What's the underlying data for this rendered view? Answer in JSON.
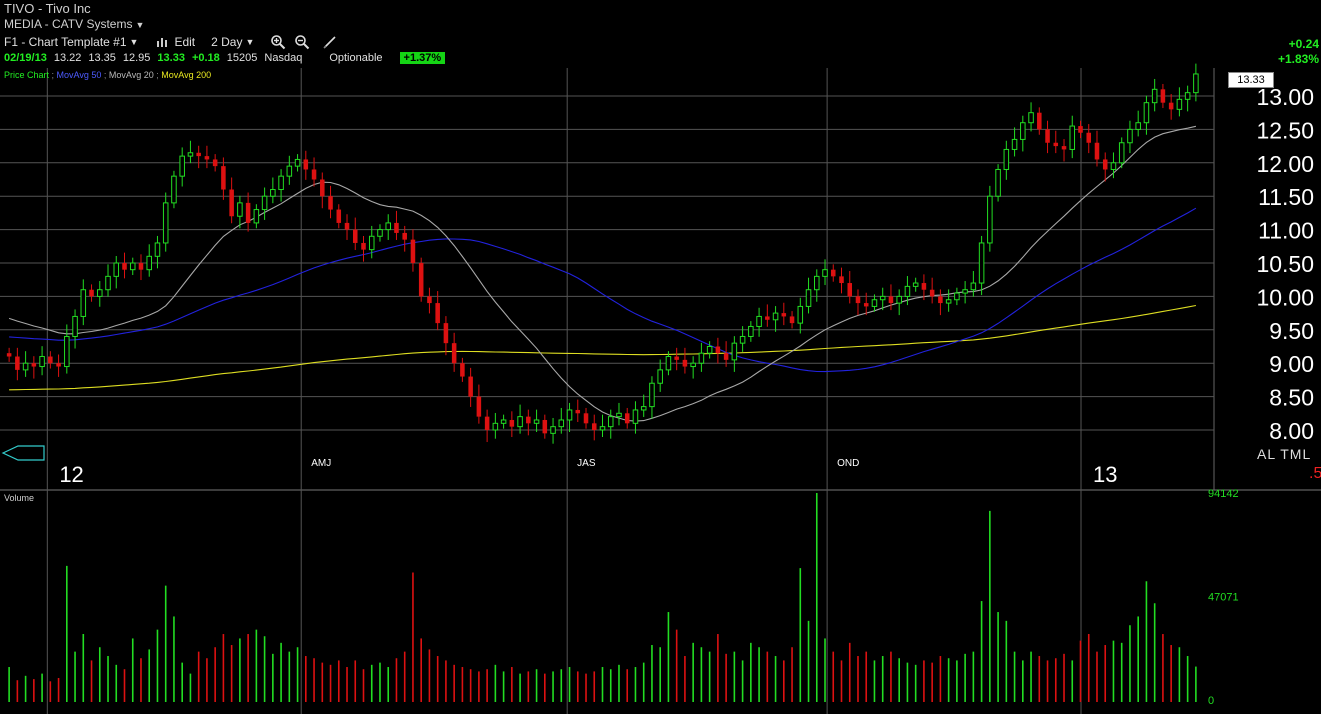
{
  "header": {
    "title": "TIVO - Tivo Inc",
    "industry": "MEDIA - CATV Systems",
    "template": "F1 - Chart Template #1",
    "edit_label": "Edit",
    "period": "2 Day"
  },
  "quote": {
    "date": "02/19/13",
    "open": "13.22",
    "high": "13.35",
    "low": "12.95",
    "close": "13.33",
    "change": "+0.18",
    "volume": "15205",
    "exchange": "Nasdaq",
    "optionable": "Optionable",
    "percent": "+1.37%"
  },
  "right_change": {
    "change": "+0.24",
    "percent": "+1.83%"
  },
  "legend": {
    "price_chart": "Price Chart",
    "ma50": "MovAvg 50",
    "ma20": "MovAvg 20",
    "ma200": "MovAvg 200"
  },
  "last_price": "13.33",
  "right_tools": "AL TML",
  "right_cut": ".5",
  "volume_label": "Volume",
  "colors": {
    "up": "#22dd22",
    "down": "#dd1111",
    "ma50": "#2222dd",
    "ma20": "#a8a8a8",
    "ma200": "#dddd22",
    "grid": "#555555"
  },
  "chart_data": {
    "type": "candlestick",
    "price_axis": {
      "ticks": [
        8.0,
        8.5,
        9.0,
        9.5,
        10.0,
        10.5,
        11.0,
        11.5,
        12.0,
        12.5,
        13.0
      ],
      "tick_labels": [
        "8.00",
        "8.50",
        "9.00",
        "9.50",
        "10.00",
        "10.50",
        "11.00",
        "11.50",
        "12.00",
        "12.50",
        "13.00"
      ]
    },
    "time_labels": [
      "12",
      "AMJ",
      "JAS",
      "OND",
      "13"
    ],
    "volume_axis": {
      "ticks": [
        0,
        47071,
        94142
      ],
      "tick_labels": [
        "0",
        "47071",
        "94142"
      ]
    },
    "close": [
      9.1,
      8.9,
      9.0,
      8.95,
      9.1,
      9.0,
      8.95,
      9.4,
      9.7,
      10.1,
      10.0,
      10.1,
      10.3,
      10.5,
      10.4,
      10.5,
      10.4,
      10.6,
      10.8,
      11.4,
      11.8,
      12.1,
      12.15,
      12.1,
      12.05,
      11.95,
      11.6,
      11.2,
      11.4,
      11.1,
      11.3,
      11.5,
      11.6,
      11.8,
      11.95,
      12.05,
      11.9,
      11.75,
      11.5,
      11.3,
      11.1,
      11.0,
      10.8,
      10.7,
      10.9,
      11.0,
      11.1,
      10.95,
      10.85,
      10.5,
      10.0,
      9.9,
      9.6,
      9.3,
      9.0,
      8.8,
      8.5,
      8.2,
      8.0,
      8.1,
      8.15,
      8.05,
      8.2,
      8.1,
      8.15,
      7.95,
      8.05,
      8.15,
      8.3,
      8.25,
      8.1,
      8.0,
      8.05,
      8.2,
      8.25,
      8.1,
      8.3,
      8.35,
      8.7,
      8.9,
      9.1,
      9.05,
      8.95,
      9.0,
      9.15,
      9.25,
      9.15,
      9.05,
      9.3,
      9.4,
      9.55,
      9.7,
      9.65,
      9.75,
      9.7,
      9.6,
      9.85,
      10.1,
      10.3,
      10.4,
      10.3,
      10.2,
      10.0,
      9.9,
      9.85,
      9.95,
      10.0,
      9.9,
      10.0,
      10.15,
      10.2,
      10.1,
      10.0,
      9.9,
      9.95,
      10.05,
      10.1,
      10.2,
      10.8,
      11.5,
      11.9,
      12.2,
      12.35,
      12.6,
      12.75,
      12.5,
      12.3,
      12.25,
      12.2,
      12.55,
      12.45,
      12.3,
      12.05,
      11.9,
      12.0,
      12.3,
      12.5,
      12.6,
      12.9,
      13.1,
      12.9,
      12.8,
      12.95,
      13.05,
      13.33
    ],
    "volume": [
      15000,
      9000,
      11000,
      9500,
      12000,
      8500,
      10000,
      61000,
      22000,
      30000,
      18000,
      24000,
      20000,
      16000,
      14000,
      28000,
      19000,
      23000,
      32000,
      52000,
      38000,
      17000,
      12000,
      22000,
      19000,
      24000,
      30000,
      25000,
      28000,
      30000,
      32000,
      29000,
      21000,
      26000,
      22000,
      24000,
      20000,
      19000,
      17000,
      16000,
      18000,
      15000,
      18000,
      14000,
      16000,
      17000,
      15000,
      19000,
      22000,
      58000,
      28000,
      23000,
      20000,
      18000,
      16000,
      15000,
      14000,
      13000,
      14000,
      16000,
      13000,
      15000,
      12000,
      13000,
      14000,
      12000,
      13000,
      14000,
      15000,
      13000,
      12000,
      13000,
      15000,
      14000,
      16000,
      14000,
      15000,
      17000,
      25000,
      24000,
      40000,
      32000,
      20000,
      26000,
      24000,
      22000,
      30000,
      21000,
      22000,
      18000,
      26000,
      24000,
      22000,
      20000,
      18000,
      24000,
      60000,
      36000,
      94142,
      28000,
      22000,
      18000,
      26000,
      20000,
      22000,
      18000,
      20000,
      22000,
      19000,
      17000,
      16000,
      18000,
      17000,
      20000,
      19000,
      18000,
      21000,
      22000,
      45000,
      86000,
      40000,
      36000,
      22000,
      18000,
      22000,
      20000,
      18000,
      19000,
      21000,
      18000,
      27000,
      30000,
      22000,
      25000,
      27000,
      26000,
      34000,
      38000,
      54000,
      44000,
      30000,
      25000,
      24000,
      20000,
      15205
    ]
  }
}
